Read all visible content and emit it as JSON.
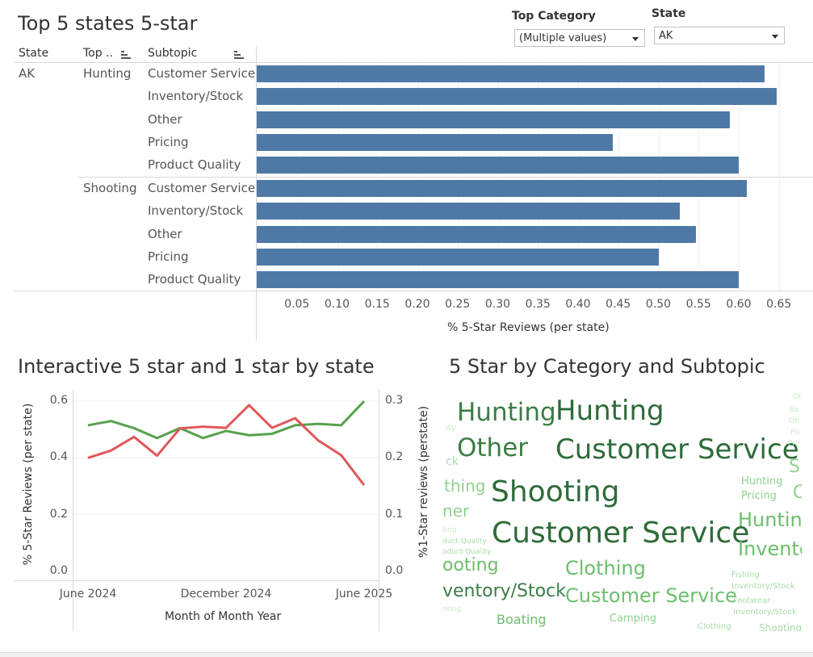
{
  "top_chart": {
    "title": "Top 5 states 5-star",
    "headers": {
      "state": "State",
      "top": "Top ..",
      "subtopic": "Subtopic"
    },
    "state_value": "AK",
    "groups": [
      {
        "category": "Hunting",
        "rows": [
          {
            "subtopic": "Customer Service",
            "value": 0.632
          },
          {
            "subtopic": "Inventory/Stock",
            "value": 0.647
          },
          {
            "subtopic": "Other",
            "value": 0.589
          },
          {
            "subtopic": "Pricing",
            "value": 0.443
          },
          {
            "subtopic": "Product Quality",
            "value": 0.6
          }
        ]
      },
      {
        "category": "Shooting",
        "rows": [
          {
            "subtopic": "Customer Service",
            "value": 0.61
          },
          {
            "subtopic": "Inventory/Stock",
            "value": 0.527
          },
          {
            "subtopic": "Other",
            "value": 0.547
          },
          {
            "subtopic": "Pricing",
            "value": 0.5
          },
          {
            "subtopic": "Product Quality",
            "value": 0.6
          }
        ]
      }
    ],
    "x_ticks": [
      "0.05",
      "0.10",
      "0.15",
      "0.20",
      "0.25",
      "0.30",
      "0.35",
      "0.40",
      "0.45",
      "0.50",
      "0.55",
      "0.60",
      "0.65"
    ],
    "x_label": "% 5-Star Reviews (per state)"
  },
  "filters": {
    "top_category_label": "Top Category",
    "top_category_value": "(Multiple values)",
    "state_label": "State",
    "state_value": "AK"
  },
  "line_chart": {
    "title": "Interactive 5 star and 1 star by state",
    "y_left_ticks": [
      "0.6",
      "0.4",
      "0.2",
      "0.0"
    ],
    "y_right_ticks": [
      "0.3",
      "0.2",
      "0.1",
      "0.0"
    ],
    "y_left_label": "% 5-Star Reviews (per state)",
    "y_right_label": "%1-Star reviews (perstate)",
    "x_ticks": [
      "June 2024",
      "December 2024",
      "June 2025"
    ],
    "x_label": "Month of Month Year",
    "colors": {
      "five_star": "#59a14f",
      "one_star": "#e15759"
    }
  },
  "chart_data": {
    "type": "line",
    "x": [
      "Jun 2024",
      "Jul 2024",
      "Aug 2024",
      "Sep 2024",
      "Oct 2024",
      "Nov 2024",
      "Dec 2024",
      "Jan 2025",
      "Feb 2025",
      "Mar 2025",
      "Apr 2025",
      "May 2025",
      "Jun 2025"
    ],
    "series": [
      {
        "axis": "left",
        "values": [
          0.515,
          0.53,
          0.505,
          0.47,
          0.505,
          0.47,
          0.495,
          0.48,
          0.485,
          0.515,
          0.52,
          0.515,
          0.6
        ]
      },
      {
        "axis": "right",
        "values": [
          0.2,
          0.213,
          0.237,
          0.204,
          0.252,
          0.255,
          0.253,
          0.293,
          0.253,
          0.27,
          0.231,
          0.205,
          0.152
        ]
      }
    ],
    "title": "Interactive 5 star and 1 star by state",
    "xlabel": "Month of Month Year",
    "ylabel": "% 5-Star Reviews (per state)",
    "ylabel_right": "%1-Star reviews (perstate)",
    "ylim": [
      0,
      0.62
    ],
    "ylim_right": [
      0,
      0.31
    ]
  },
  "word_cloud": {
    "title": "5 Star by Category and Subtopic",
    "words": [
      {
        "text": "Hunting",
        "size": 31,
        "color": "#3a7d44"
      },
      {
        "text": "Hunting",
        "size": 34,
        "color": "#2e6b3a"
      },
      {
        "text": "Other",
        "size": 31,
        "color": "#3a7d44"
      },
      {
        "text": "Customer Service",
        "size": 34,
        "color": "#2e6b3a"
      },
      {
        "text": "Shooting",
        "size": 36,
        "color": "#2e6b3a"
      },
      {
        "text": "Customer Service",
        "size": 36,
        "color": "#2e6b3a"
      },
      {
        "text": "ooting",
        "size": 22,
        "color": "#6cbf6c"
      },
      {
        "text": "Clothing",
        "size": 24,
        "color": "#6cbf6c"
      },
      {
        "text": "ventory/Stock",
        "size": 22,
        "color": "#3a7d44"
      },
      {
        "text": "Customer Service",
        "size": 24,
        "color": "#6cbf6c"
      },
      {
        "text": "Boating",
        "size": 16,
        "color": "#6cbf6c"
      },
      {
        "text": "Camping",
        "size": 13,
        "color": "#8fd18f"
      },
      {
        "text": "Clothing",
        "size": 10,
        "color": "#a8dca8"
      },
      {
        "text": "Shooting",
        "size": 12,
        "color": "#a8dca8"
      },
      {
        "text": "thing",
        "size": 20,
        "color": "#8fd18f"
      },
      {
        "text": "ner",
        "size": 20,
        "color": "#8fd18f"
      },
      {
        "text": "ck",
        "size": 14,
        "color": "#a8dca8"
      },
      {
        "text": "Hunting",
        "size": 13,
        "color": "#8fd18f"
      },
      {
        "text": "Pricing",
        "size": 13,
        "color": "#8fd18f"
      },
      {
        "text": "Huntin",
        "size": 24,
        "color": "#6cbf6c"
      },
      {
        "text": "Invento",
        "size": 24,
        "color": "#6cbf6c"
      },
      {
        "text": "Fishing",
        "size": 10,
        "color": "#a8dca8"
      },
      {
        "text": "Inventory/Stock",
        "size": 10,
        "color": "#a8dca8"
      },
      {
        "text": "Footwear",
        "size": 10,
        "color": "#a8dca8"
      },
      {
        "text": "Inventory/Stock",
        "size": 10,
        "color": "#a8dca8"
      },
      {
        "text": "S",
        "size": 22,
        "color": "#8fd18f"
      },
      {
        "text": "O",
        "size": 22,
        "color": "#8fd18f"
      },
      {
        "text": "duct Quality",
        "size": 9,
        "color": "#a8dca8"
      },
      {
        "text": "oduct Quality",
        "size": 9,
        "color": "#a8dca8"
      },
      {
        "text": "ity",
        "size": 10,
        "color": "#c7e8c7"
      },
      {
        "text": "ting",
        "size": 9,
        "color": "#c7e8c7"
      },
      {
        "text": "nting",
        "size": 9,
        "color": "#c7e8c7"
      },
      {
        "text": "Ot",
        "size": 9,
        "color": "#c7e8c7"
      },
      {
        "text": "Bo",
        "size": 9,
        "color": "#c7e8c7"
      },
      {
        "text": "Otr",
        "size": 9,
        "color": "#c7e8c7"
      },
      {
        "text": "Fis",
        "size": 9,
        "color": "#c7e8c7"
      },
      {
        "text": "Pro",
        "size": 9,
        "color": "#c7e8c7"
      }
    ]
  }
}
